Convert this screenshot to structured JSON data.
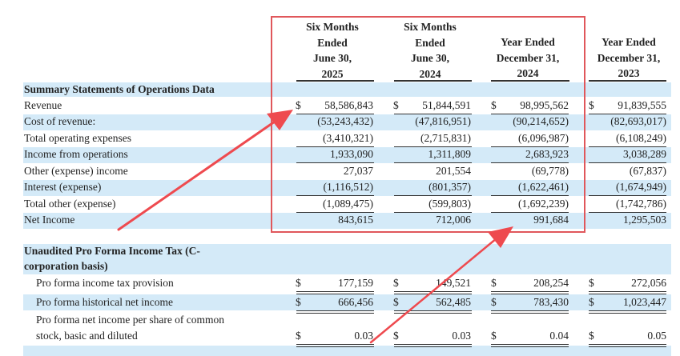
{
  "columns": [
    {
      "header": [
        "Six Months",
        "Ended",
        "June 30,",
        "2025"
      ]
    },
    {
      "header": [
        "Six Months",
        "Ended",
        "June 30,",
        "2024"
      ]
    },
    {
      "header": [
        "Year Ended",
        "December 31,",
        "2024"
      ]
    },
    {
      "header": [
        "Year Ended",
        "December 31,",
        "2023"
      ]
    }
  ],
  "section1": {
    "title": "Summary Statements of Operations Data",
    "rows": [
      {
        "label": "Revenue",
        "currency": "$",
        "values": [
          "58,586,843",
          "51,844,591",
          "98,995,562",
          "91,839,555"
        ]
      },
      {
        "label": "Cost of revenue:",
        "values": [
          "(53,243,432)",
          "(47,816,951)",
          "(90,214,652)",
          "(82,693,017)"
        ]
      },
      {
        "label": "Total operating expenses",
        "values": [
          "(3,410,321)",
          "(2,715,831)",
          "(6,096,987)",
          "(6,108,249)"
        ]
      },
      {
        "label": "Income from operations",
        "values": [
          "1,933,090",
          "1,311,809",
          "2,683,923",
          "3,038,289"
        ]
      },
      {
        "label": "Other (expense) income",
        "values": [
          "27,037",
          "201,554",
          "(69,778)",
          "(67,837)"
        ]
      },
      {
        "label": "Interest (expense)",
        "values": [
          "(1,116,512)",
          "(801,357)",
          "(1,622,461)",
          "(1,674,949)"
        ]
      },
      {
        "label": "Total other (expense)",
        "values": [
          "(1,089,475)",
          "(599,803)",
          "(1,692,239)",
          "(1,742,786)"
        ]
      },
      {
        "label": "Net Income",
        "values": [
          "843,615",
          "712,006",
          "991,684",
          "1,295,503"
        ]
      }
    ]
  },
  "section2": {
    "title_line1": "Unaudited Pro Forma Income Tax (C-",
    "title_line2": "corporation basis)",
    "rows": [
      {
        "label": "Pro forma income tax provision",
        "currency": "$",
        "values": [
          "177,159",
          "149,521",
          "208,254",
          "272,056"
        ]
      },
      {
        "label": "Pro forma historical net income",
        "currency": "$",
        "values": [
          "666,456",
          "562,485",
          "783,430",
          "1,023,447"
        ]
      },
      {
        "label_line1": "Pro forma net income per share of common",
        "label_line2": "stock, basic and diluted",
        "currency": "$",
        "values": [
          "0.03",
          "0.03",
          "0.04",
          "0.05"
        ]
      }
    ]
  },
  "annotations": {
    "highlight_color": "#e0575b",
    "highlighted_columns": [
      "Six Months Ended June 30, 2025",
      "Six Months Ended June 30, 2024",
      "Year Ended December 31, 2024"
    ]
  }
}
